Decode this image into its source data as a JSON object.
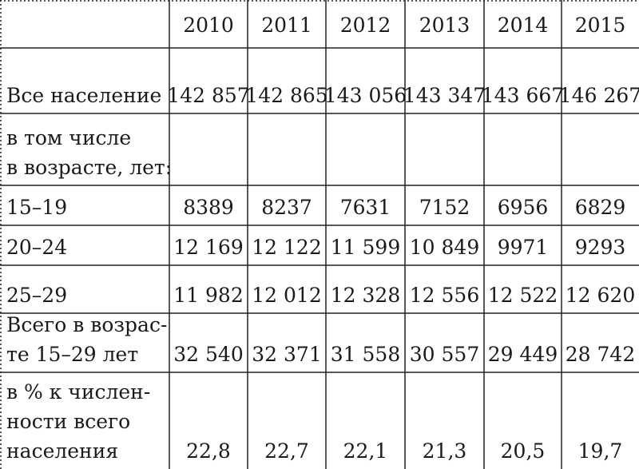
{
  "table": {
    "years": [
      "2010",
      "2011",
      "2012",
      "2013",
      "2014",
      "2015"
    ],
    "rows": [
      {
        "label": [
          "Все население"
        ],
        "values": [
          "142 857",
          "142 865",
          "143 056",
          "143 347",
          "143 667",
          "146 267"
        ]
      },
      {
        "label": [
          "в том числе",
          "в возрасте, лет:"
        ]
      },
      {
        "label": [
          "15–19"
        ],
        "values": [
          "8389",
          "8237",
          "7631",
          "7152",
          "6956",
          "6829"
        ]
      },
      {
        "label": [
          "20–24"
        ],
        "values": [
          "12 169",
          "12 122",
          "11 599",
          "10 849",
          "9971",
          "9293"
        ]
      },
      {
        "label": [
          "25–29"
        ],
        "values": [
          "11 982",
          "12 012",
          "12 328",
          "12 556",
          "12 522",
          "12 620"
        ]
      },
      {
        "label": [
          "Всего в возрас-",
          "те 15–29 лет"
        ],
        "values": [
          "32 540",
          "32 371",
          "31 558",
          "30 557",
          "29 449",
          "28 742"
        ]
      },
      {
        "label": [
          "в % к числен-",
          "ности всего",
          "населения"
        ],
        "values": [
          "22,8",
          "22,7",
          "22,1",
          "21,3",
          "20,5",
          "19,7"
        ]
      }
    ]
  }
}
